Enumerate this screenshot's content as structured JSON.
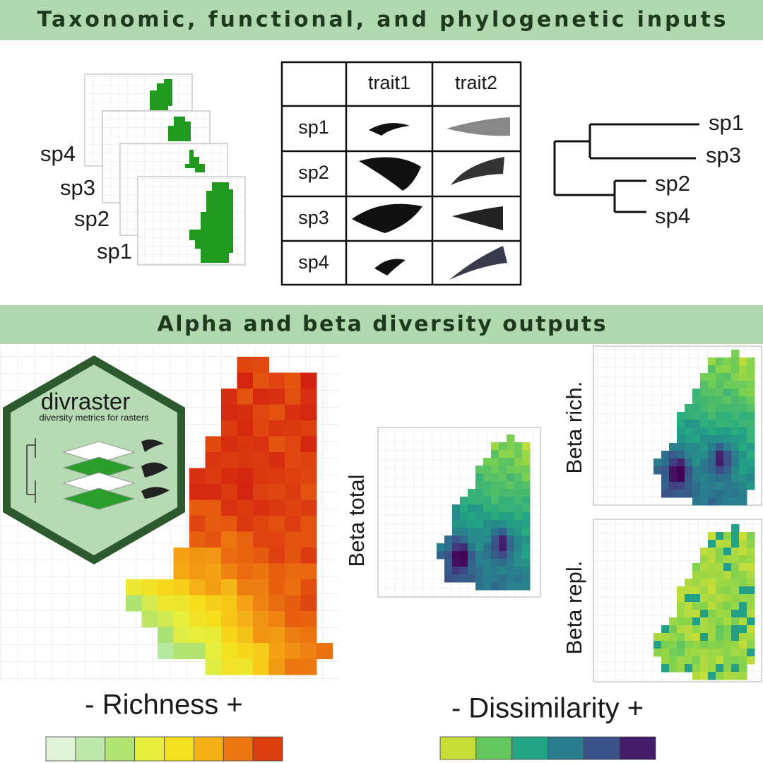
{
  "inputs": {
    "title": "Taxonomic, functional, and phylogenetic inputs",
    "layers": [
      "sp4",
      "sp3",
      "sp2",
      "sp1"
    ],
    "traits_table": {
      "header": [
        "trait1",
        "trait2"
      ],
      "rows": [
        "sp1",
        "sp2",
        "sp3",
        "sp4"
      ]
    },
    "tree": {
      "tips": [
        "sp1",
        "sp3",
        "sp2",
        "sp4"
      ]
    }
  },
  "outputs": {
    "title": "Alpha and beta diversity outputs",
    "logo": {
      "name": "divraster",
      "tagline": "diversity metrics for rasters"
    },
    "maps": [
      "Beta total",
      "Beta rich.",
      "Beta repl."
    ],
    "legends": [
      "- Richness +",
      "- Dissimilarity +"
    ]
  }
}
